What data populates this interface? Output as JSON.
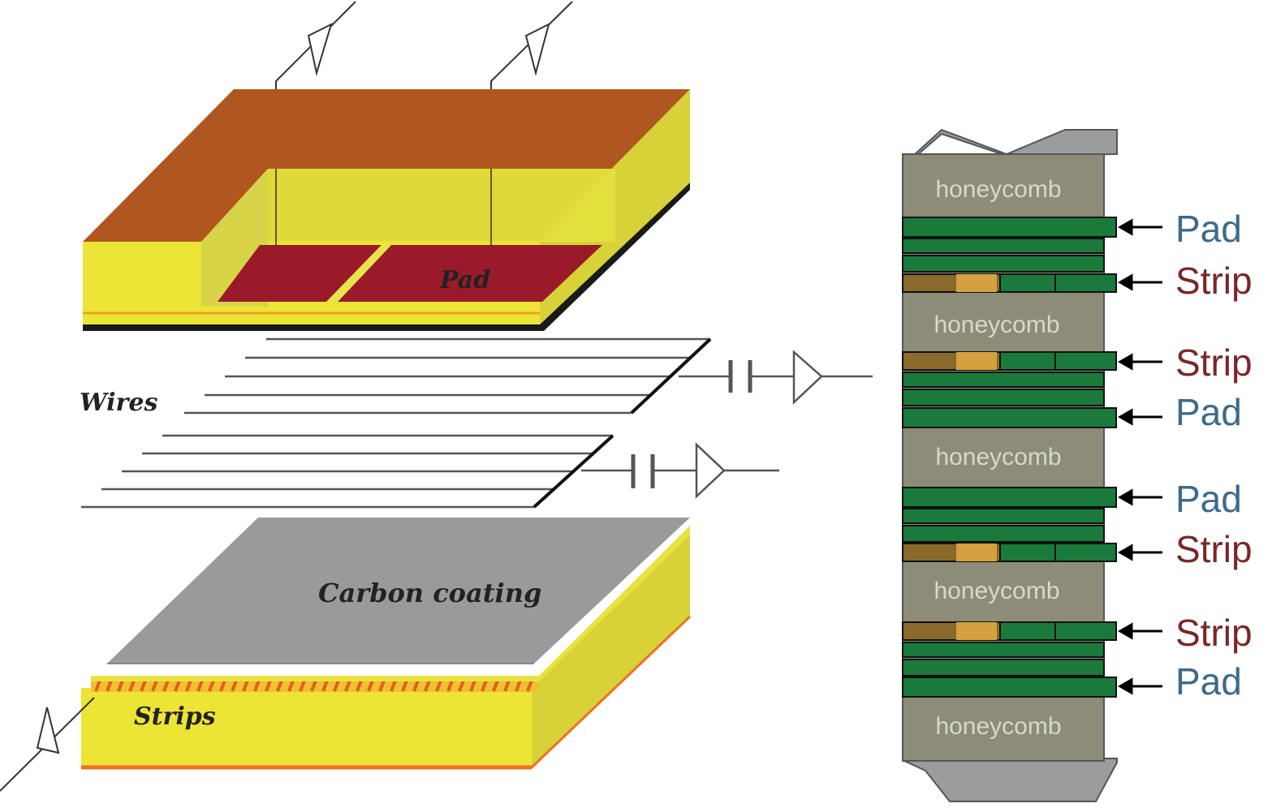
{
  "left_diagram": {
    "pad_label": "Pad",
    "wires_label": "Wires",
    "carbon_label": "Carbon coating",
    "strips_label": "Strips"
  },
  "right_diagram": {
    "honeycomb": [
      "honeycomb",
      "honeycomb",
      "honeycomb",
      "honeycomb",
      "honeycomb"
    ],
    "annotations": [
      "Pad",
      "Strip",
      "Strip",
      "Pad",
      "Pad",
      "Strip",
      "Strip",
      "Pad"
    ]
  },
  "colors": {
    "pad_text": "#3d6a8a",
    "strip_text": "#7a2727",
    "green_layer": "#1a7a3c",
    "honeycomb_fill": "#8d8c78",
    "yellow": "#ede536",
    "brown": "#b0571f",
    "pad_red": "#9a1a2a",
    "carbon_gray": "#9a9a9a"
  }
}
